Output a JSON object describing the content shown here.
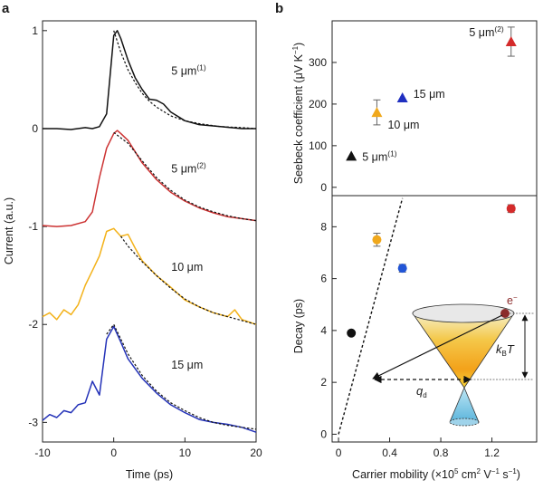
{
  "panel_labels": {
    "a": "a",
    "b": "b"
  },
  "colors": {
    "black": "#111111",
    "red": "#d42b2b",
    "orange": "#f0a81c",
    "blue": "#1f2fc0",
    "blue_marker": "#2255d6",
    "red_trace": "#cc3232",
    "orange_trace": "#f3b21a",
    "blue_trace": "#2432b8",
    "cone_dark": "#8b2b2b"
  },
  "chart_data": [
    {
      "id": "panel-a",
      "type": "line",
      "xlabel": "Time (ps)",
      "ylabel": "Current (a.u.)",
      "xlim": [
        -10,
        20
      ],
      "ylim": [
        -3.2,
        1.1
      ],
      "x_ticks": [
        -10,
        0,
        10,
        20
      ],
      "y_ticks": [
        1,
        0,
        -1,
        -2,
        -3
      ],
      "grid": false,
      "series": [
        {
          "label": "5 μm",
          "label_sup": "(1)",
          "color": "#111111",
          "baseline": 0,
          "label_at": [
            3,
            0.55
          ],
          "x": [
            -10,
            -8,
            -6,
            -4,
            -3,
            -2,
            -1,
            0,
            0.5,
            1,
            2,
            3,
            4,
            5,
            6,
            7,
            8,
            10,
            12,
            15,
            18,
            20
          ],
          "y": [
            0,
            0,
            -0.01,
            0.01,
            0,
            0.02,
            0.15,
            0.95,
            1.0,
            0.92,
            0.7,
            0.52,
            0.4,
            0.3,
            0.29,
            0.25,
            0.17,
            0.08,
            0.04,
            0.02,
            0,
            0
          ],
          "fit_x": [
            0,
            1,
            2,
            3,
            4,
            5,
            6,
            8,
            10,
            12,
            15,
            18,
            20
          ],
          "fit_y": [
            1.0,
            0.78,
            0.6,
            0.47,
            0.36,
            0.28,
            0.22,
            0.13,
            0.08,
            0.05,
            0.02,
            0.01,
            0
          ]
        },
        {
          "label": "5 μm",
          "label_sup": "(2)",
          "color": "#cc3232",
          "baseline": -1,
          "label_at": [
            3,
            -0.45
          ],
          "x": [
            -10,
            -8,
            -6,
            -4,
            -3,
            -2,
            -1,
            0,
            0.5,
            1,
            2,
            4,
            6,
            8,
            10,
            12,
            14,
            16,
            18,
            20
          ],
          "y": [
            -0.99,
            -1.0,
            -0.99,
            -0.95,
            -0.85,
            -0.5,
            -0.2,
            -0.05,
            -0.02,
            -0.05,
            -0.12,
            -0.35,
            -0.52,
            -0.65,
            -0.74,
            -0.81,
            -0.86,
            -0.9,
            -0.92,
            -0.94
          ],
          "fit_x": [
            0,
            2,
            4,
            6,
            8,
            10,
            12,
            14,
            16,
            18,
            20
          ],
          "fit_y": [
            -0.04,
            -0.15,
            -0.33,
            -0.5,
            -0.63,
            -0.73,
            -0.8,
            -0.85,
            -0.89,
            -0.92,
            -0.94
          ]
        },
        {
          "label": "10 μm",
          "color": "#f3b21a",
          "baseline": -2,
          "label_at": [
            3,
            -1.45
          ],
          "x": [
            -10,
            -9,
            -8,
            -7,
            -6,
            -5,
            -4,
            -3,
            -2,
            -1,
            0,
            1,
            2,
            3,
            4,
            6,
            8,
            10,
            12,
            14,
            16,
            17,
            18,
            20
          ],
          "y": [
            -1.92,
            -1.88,
            -1.95,
            -1.85,
            -1.9,
            -1.8,
            -1.6,
            -1.45,
            -1.3,
            -1.05,
            -1.02,
            -1.1,
            -1.08,
            -1.22,
            -1.35,
            -1.5,
            -1.62,
            -1.75,
            -1.82,
            -1.88,
            -1.92,
            -1.85,
            -1.95,
            -2.0
          ],
          "fit_x": [
            1,
            2,
            4,
            6,
            8,
            10,
            12,
            14,
            16,
            18,
            20
          ],
          "fit_y": [
            -1.1,
            -1.2,
            -1.36,
            -1.5,
            -1.63,
            -1.74,
            -1.82,
            -1.88,
            -1.92,
            -1.96,
            -2.0
          ]
        },
        {
          "label": "15 μm",
          "color": "#2432b8",
          "baseline": -3,
          "label_at": [
            3,
            -2.45
          ],
          "x": [
            -10,
            -9,
            -8,
            -7,
            -6,
            -5,
            -4,
            -3,
            -2,
            -1,
            0,
            1,
            2,
            4,
            6,
            8,
            10,
            12,
            14,
            16,
            18,
            20
          ],
          "y": [
            -2.98,
            -2.92,
            -2.95,
            -2.88,
            -2.9,
            -2.82,
            -2.8,
            -2.58,
            -2.72,
            -2.15,
            -2.02,
            -2.18,
            -2.35,
            -2.55,
            -2.7,
            -2.82,
            -2.9,
            -2.97,
            -3.0,
            -3.02,
            -3.05,
            -3.1
          ],
          "fit_x": [
            -1,
            0,
            2,
            4,
            6,
            8,
            10,
            12,
            14,
            16,
            18,
            20
          ],
          "fit_y": [
            -2.1,
            -2.0,
            -2.3,
            -2.52,
            -2.68,
            -2.8,
            -2.88,
            -2.95,
            -3.0,
            -3.03,
            -3.05,
            -3.07
          ]
        }
      ]
    },
    {
      "id": "panel-b-top",
      "type": "scatter",
      "ylabel": "Seebeck coefficient (μV K",
      "ylabel_sup": "−1",
      "ylabel_end": ")",
      "xlim": [
        -0.05,
        1.55
      ],
      "ylim": [
        -20,
        400
      ],
      "y_ticks": [
        0,
        100,
        200,
        300
      ],
      "marker": "triangle",
      "points": [
        {
          "x": 0.1,
          "y": 75,
          "err": 0,
          "color": "#111111",
          "label": "5 μm",
          "label_sup": "(1)"
        },
        {
          "x": 0.3,
          "y": 180,
          "err": 30,
          "color": "#f0a81c",
          "label": "10 μm"
        },
        {
          "x": 0.5,
          "y": 215,
          "err": 0,
          "color": "#1f2fc0",
          "label": "15 μm"
        },
        {
          "x": 1.35,
          "y": 350,
          "err": 35,
          "color": "#d42b2b",
          "label": "5 μm",
          "label_sup": "(2)"
        }
      ]
    },
    {
      "id": "panel-b-bottom",
      "type": "scatter",
      "xlabel": "Carrier mobility (×10",
      "xlabel_rest": [
        "5",
        " cm",
        "2",
        " V",
        "−1",
        " s",
        "−1",
        ")"
      ],
      "ylabel": "Decay (ps)",
      "xlim": [
        -0.05,
        1.55
      ],
      "ylim": [
        -0.3,
        9.2
      ],
      "x_ticks": [
        "0",
        "0.4",
        "0.8",
        "1.2"
      ],
      "x_tick_values": [
        0,
        0.4,
        0.8,
        1.2
      ],
      "y_ticks": [
        0,
        2,
        4,
        6,
        8
      ],
      "marker": "circle",
      "points": [
        {
          "x": 0.1,
          "y": 3.9,
          "err": 0,
          "color": "#111111"
        },
        {
          "x": 0.3,
          "y": 7.5,
          "err": 0.25,
          "color": "#f0a81c"
        },
        {
          "x": 0.5,
          "y": 6.4,
          "err": 0.15,
          "color": "#2255d6"
        },
        {
          "x": 1.35,
          "y": 8.7,
          "err": 0.15,
          "color": "#d42b2b"
        }
      ],
      "dashed_line": {
        "x": [
          0,
          0.5
        ],
        "y": [
          0,
          9.1
        ]
      },
      "inset": {
        "electron_label": "e",
        "electron_sup": "−",
        "energy_label_k": "k",
        "energy_label_sub": "B",
        "energy_label_t": "T",
        "q_label": "q",
        "q_sub": "d"
      }
    }
  ]
}
